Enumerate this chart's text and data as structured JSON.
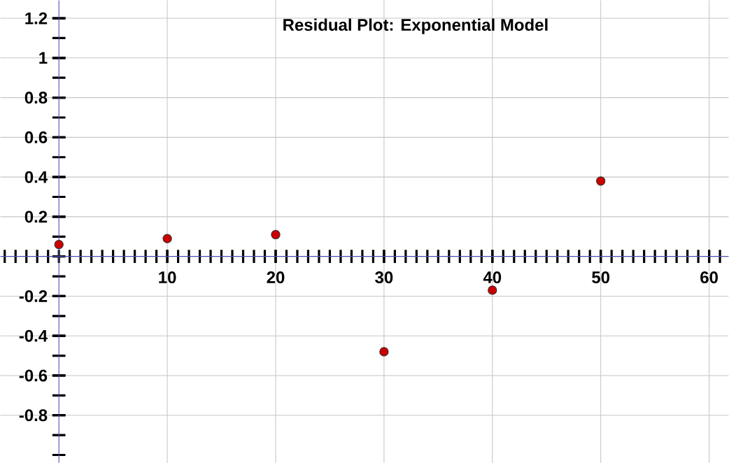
{
  "chart_data": {
    "type": "scatter",
    "title": "Residual Plot: Exponential Model",
    "x": [
      0,
      10,
      20,
      30,
      40,
      50
    ],
    "series": [
      {
        "color": "#cc0000",
        "values": [
          0.06,
          0.09,
          0.11,
          -0.48,
          -0.17,
          0.38
        ]
      }
    ],
    "xlim": [
      -5.4,
      61.8
    ],
    "ylim": [
      -1.04,
      1.29
    ],
    "xticks": [
      10,
      20,
      30,
      40,
      50,
      60
    ],
    "yticks": [
      -0.8,
      -0.6,
      -0.4,
      -0.2,
      0.2,
      0.4,
      0.6,
      0.8,
      1,
      1.2
    ],
    "grid": true,
    "marker": "circle"
  }
}
